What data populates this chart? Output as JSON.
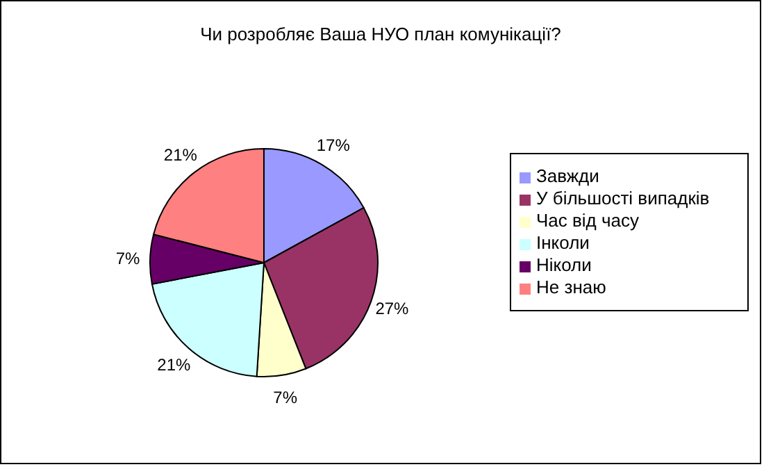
{
  "chart_data": {
    "type": "pie",
    "title": "Чи розробляє Ваша НУО план комунікації?",
    "categories": [
      "Завжди",
      "У більшості випадків",
      "Час від часу",
      "Інколи",
      "Ніколи",
      "Не знаю"
    ],
    "values": [
      17,
      27,
      7,
      21,
      7,
      21
    ],
    "colors": [
      "#9999ff",
      "#993366",
      "#ffffcc",
      "#ccffff",
      "#660066",
      "#ff8080"
    ],
    "value_labels": [
      "17%",
      "27%",
      "7%",
      "21%",
      "7%",
      "21%"
    ],
    "legend": "right"
  }
}
